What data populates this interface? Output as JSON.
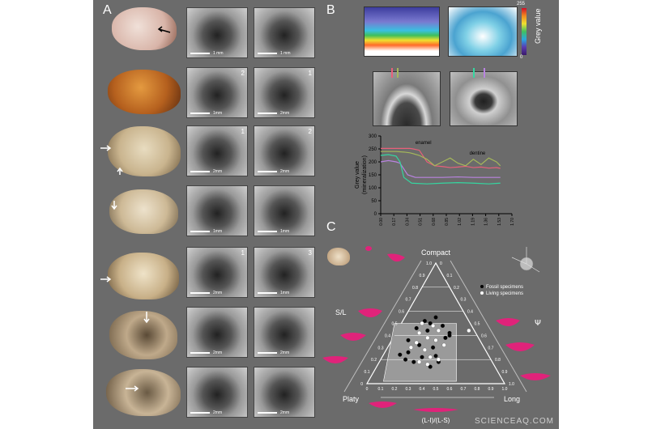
{
  "figure": {
    "panel_labels": {
      "a": "A",
      "b": "B",
      "c": "C"
    },
    "sem_images": [
      {
        "scale": "1 mm",
        "num": ""
      },
      {
        "scale": "1 mm",
        "num": ""
      },
      {
        "scale": "1mm",
        "num": "2"
      },
      {
        "scale": "2mm",
        "num": "1"
      },
      {
        "scale": "2mm",
        "num": "1"
      },
      {
        "scale": "2mm",
        "num": "2"
      },
      {
        "scale": "1mm",
        "num": ""
      },
      {
        "scale": "1mm",
        "num": ""
      },
      {
        "scale": "2mm",
        "num": "1"
      },
      {
        "scale": "1mm",
        "num": "3"
      },
      {
        "scale": "2mm",
        "num": ""
      },
      {
        "scale": "2mm",
        "num": ""
      },
      {
        "scale": "2mm",
        "num": ""
      },
      {
        "scale": "2mm",
        "num": ""
      }
    ],
    "colorbar": {
      "max": "255",
      "min": "0",
      "label": "Grey value"
    },
    "watermark": "SCIENCEAQ.COM"
  },
  "chart_data": [
    {
      "type": "line",
      "ylabel": "Grey value\n(mineralization)",
      "xlabel": "",
      "xlim": [
        0,
        1.7
      ],
      "ylim": [
        0,
        300
      ],
      "yticks": [
        0,
        50,
        100,
        150,
        200,
        250,
        300
      ],
      "xticks": [
        "0.00",
        "0.17",
        "0.34",
        "0.51",
        "0.68",
        "0.85",
        "1.02",
        "1.19",
        "1.36",
        "1.53",
        "1.70"
      ],
      "annotations": [
        {
          "text": "enamel",
          "x": 0.45,
          "y": 268
        },
        {
          "text": "dentine",
          "x": 1.15,
          "y": 228
        }
      ],
      "series": [
        {
          "color": "#e8607a",
          "x": [
            0,
            0.1,
            0.2,
            0.3,
            0.38,
            0.42,
            0.5,
            0.6,
            0.7,
            0.8,
            0.9,
            1.0,
            1.1,
            1.2,
            1.3,
            1.4,
            1.5,
            1.55
          ],
          "y": [
            252,
            252,
            252,
            252,
            252,
            250,
            245,
            200,
            185,
            182,
            178,
            180,
            183,
            178,
            180,
            176,
            178,
            175
          ]
        },
        {
          "color": "#a5b85a",
          "x": [
            0,
            0.1,
            0.2,
            0.3,
            0.38,
            0.5,
            0.6,
            0.7,
            0.8,
            0.9,
            1.0,
            1.1,
            1.2,
            1.3,
            1.4,
            1.5,
            1.55
          ],
          "y": [
            240,
            240,
            240,
            238,
            235,
            225,
            210,
            185,
            200,
            215,
            195,
            185,
            210,
            190,
            215,
            200,
            185
          ]
        },
        {
          "color": "#b983e0",
          "x": [
            0,
            0.1,
            0.2,
            0.25,
            0.35,
            0.45,
            0.6,
            0.8,
            1.0,
            1.2,
            1.4,
            1.55
          ],
          "y": [
            200,
            205,
            200,
            195,
            150,
            140,
            140,
            140,
            142,
            140,
            140,
            140
          ]
        },
        {
          "color": "#35d6a0",
          "x": [
            0,
            0.1,
            0.2,
            0.25,
            0.3,
            0.4,
            0.6,
            0.8,
            1.0,
            1.2,
            1.4,
            1.55
          ],
          "y": [
            225,
            228,
            222,
            200,
            140,
            118,
            115,
            118,
            120,
            118,
            115,
            118
          ]
        }
      ]
    },
    {
      "type": "scatter",
      "subtype": "ternary",
      "vertex_labels": {
        "top": "Compact",
        "left": "Platy",
        "right": "Long"
      },
      "left_axis_label": "S/L",
      "right_axis_label": "Ψ",
      "bottom_axis_label": "(L-I)/(L-S)",
      "ticks": [
        "0",
        "0.1",
        "0.2",
        "0.3",
        "0.4",
        "0.5",
        "0.6",
        "0.7",
        "0.8",
        "0.9",
        "1.0"
      ],
      "legend": {
        "position": "right",
        "items": [
          {
            "label": "Fossil specimens",
            "color": "#000000"
          },
          {
            "label": "Living specimens",
            "color": "#ffffff"
          }
        ]
      },
      "series": [
        {
          "name": "Fossil specimens",
          "points": [
            [
              0.42,
              0.52
            ],
            [
              0.5,
              0.55
            ],
            [
              0.46,
              0.5
            ],
            [
              0.55,
              0.48
            ],
            [
              0.36,
              0.46
            ],
            [
              0.44,
              0.44
            ],
            [
              0.6,
              0.42
            ],
            [
              0.57,
              0.38
            ],
            [
              0.3,
              0.36
            ],
            [
              0.38,
              0.32
            ],
            [
              0.48,
              0.3
            ],
            [
              0.3,
              0.26
            ],
            [
              0.4,
              0.22
            ],
            [
              0.5,
              0.23
            ],
            [
              0.24,
              0.24
            ],
            [
              0.34,
              0.18
            ],
            [
              0.46,
              0.14
            ],
            [
              0.28,
              0.2
            ],
            [
              0.52,
              0.18
            ],
            [
              0.6,
              0.4
            ]
          ]
        },
        {
          "name": "Living specimens",
          "points": [
            [
              0.4,
              0.5
            ],
            [
              0.48,
              0.48
            ],
            [
              0.52,
              0.44
            ],
            [
              0.38,
              0.42
            ],
            [
              0.44,
              0.38
            ],
            [
              0.36,
              0.34
            ],
            [
              0.5,
              0.36
            ],
            [
              0.56,
              0.32
            ],
            [
              0.42,
              0.28
            ],
            [
              0.32,
              0.3
            ],
            [
              0.46,
              0.22
            ],
            [
              0.38,
              0.18
            ],
            [
              0.52,
              0.2
            ],
            [
              0.44,
              0.16
            ],
            [
              0.74,
              0.44
            ]
          ]
        }
      ]
    }
  ]
}
